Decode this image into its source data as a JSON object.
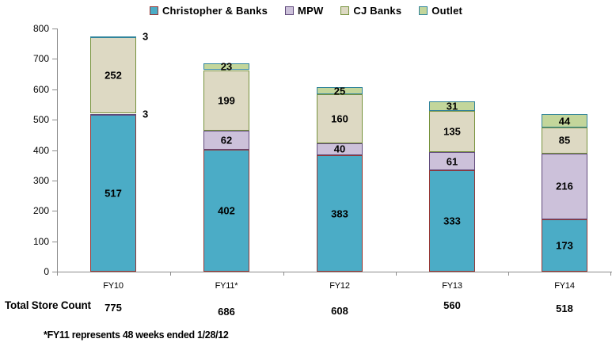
{
  "chart_data": {
    "type": "bar",
    "stacked": true,
    "title": "",
    "categories": [
      "FY10",
      "FY11*",
      "FY12",
      "FY13",
      "FY14"
    ],
    "series": [
      {
        "name": "Christopher & Banks",
        "fill": "#4BACC6",
        "border": "#953735",
        "values": [
          517,
          402,
          383,
          333,
          173
        ]
      },
      {
        "name": "MPW",
        "fill": "#CCC1DA",
        "border": "#604A7B",
        "values": [
          3,
          62,
          40,
          61,
          216
        ]
      },
      {
        "name": "CJ Banks",
        "fill": "#DDD9C3",
        "border": "#76923C",
        "values": [
          252,
          199,
          160,
          135,
          85
        ]
      },
      {
        "name": "Outlet",
        "fill": "#C3D69B",
        "border": "#31849B",
        "values": [
          3,
          23,
          25,
          31,
          44
        ]
      }
    ],
    "stack_totals": [
      775,
      686,
      608,
      560,
      518
    ],
    "ylim": [
      0,
      800
    ],
    "ytick_step": 100,
    "grid": false,
    "legend_position": "top",
    "axis_color": "#8C8C8C",
    "data_label_color": "#000000"
  },
  "totals_row": {
    "label": "Total Store Count",
    "values": [
      "775",
      "686",
      "608",
      "560",
      "518"
    ]
  },
  "footnote": "*FY11 represents 48 weeks ended 1/28/12"
}
